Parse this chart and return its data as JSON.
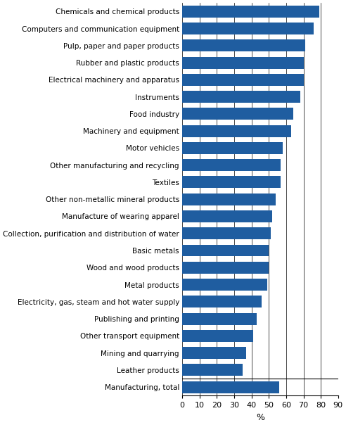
{
  "categories": [
    "Chemicals and chemical products",
    "Computers and communication equipment",
    "Pulp, paper and paper products",
    "Rubber and plastic products",
    "Electrical machinery and apparatus",
    "Instruments",
    "Food industry",
    "Machinery and equipment",
    "Motor vehicles",
    "Other manufacturing and recycling",
    "Textiles",
    "Other non-metallic mineral products",
    "Manufacture of wearing apparel",
    "Collection, purification and distribution of water",
    "Basic metals",
    "Wood and wood products",
    "Metal products",
    "Electricity, gas, steam and hot water supply",
    "Publishing and printing",
    "Other transport equipment",
    "Mining and quarrying",
    "Leather products",
    "Manufacturing, total"
  ],
  "values": [
    79,
    76,
    71,
    70,
    70,
    68,
    64,
    63,
    58,
    57,
    57,
    54,
    52,
    51,
    50,
    50,
    49,
    46,
    43,
    41,
    37,
    35,
    56
  ],
  "bar_color": "#1F5DA0",
  "xlabel": "%",
  "xlim": [
    0,
    90
  ],
  "xticks": [
    0,
    10,
    20,
    30,
    40,
    50,
    60,
    70,
    80,
    90
  ],
  "bar_height": 0.7,
  "figure_bg": "#ffffff",
  "axes_bg": "#ffffff",
  "font_size_labels": 7.5,
  "font_size_ticks": 8,
  "font_size_xlabel": 9
}
